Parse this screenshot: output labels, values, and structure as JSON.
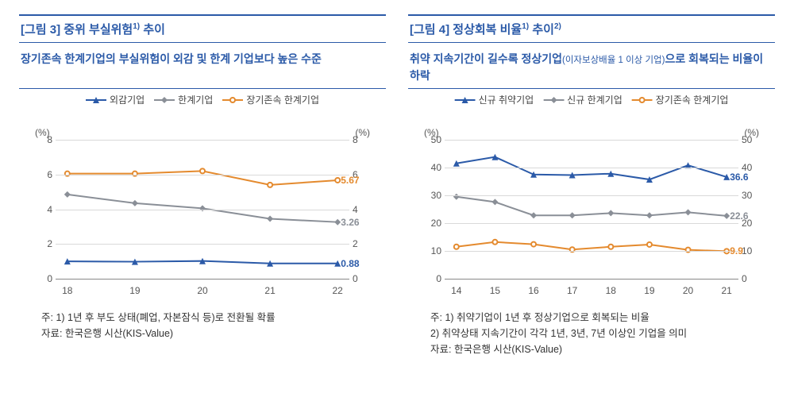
{
  "fig3": {
    "title_prefix": "[그림 3] 중위 부실위험",
    "title_footnote": "1)",
    "title_suffix": " 추이",
    "subtitle": "장기존속 한계기업의 부실위험이 외감 및 한계 기업보다 높은 수준",
    "legend": [
      "외감기업",
      "한계기업",
      "장기존속 한계기업"
    ],
    "unit_left": "(%)",
    "unit_right": "(%)",
    "x": [
      "18",
      "19",
      "20",
      "21",
      "22"
    ],
    "ylim": [
      0,
      8
    ],
    "ytick_step": 2,
    "series": [
      {
        "name": "외감기업",
        "color": "#2b5aa8",
        "marker": "triangle",
        "values": [
          1.0,
          0.98,
          1.02,
          0.88,
          0.88
        ]
      },
      {
        "name": "한계기업",
        "color": "#8a8f97",
        "marker": "diamond",
        "values": [
          4.85,
          4.35,
          4.05,
          3.45,
          3.26
        ]
      },
      {
        "name": "장기존속 한계기업",
        "color": "#e48a2e",
        "marker": "circleOpen",
        "values": [
          6.05,
          6.05,
          6.2,
          5.4,
          5.67
        ]
      }
    ],
    "end_labels": [
      {
        "value": "5.67",
        "color": "#e48a2e",
        "y": 5.67
      },
      {
        "value": "3.26",
        "color": "#8a8f97",
        "y": 3.26
      },
      {
        "value": "0.88",
        "color": "#2b5aa8",
        "y": 0.88
      }
    ],
    "note1": "주: 1) 1년 후 부도 상태(폐업, 자본잠식 등)로 전환될 확률",
    "source": "자료: 한국은행 시산(KIS-Value)"
  },
  "fig4": {
    "title_prefix": "[그림 4] 정상회복 비율",
    "title_footnote": "1)",
    "title_mid": " 추이",
    "title_footnote2": "2)",
    "subtitle_a": "취약 지속기간이 길수록 정상기업",
    "subtitle_small": "(이자보상배율 1 이상 기업)",
    "subtitle_b": "으로 회복되는 비율이 하락",
    "legend": [
      "신규 취약기업",
      "신규 한계기업",
      "장기존속 한계기업"
    ],
    "unit_left": "(%)",
    "unit_right": "(%)",
    "x": [
      "14",
      "15",
      "16",
      "17",
      "18",
      "19",
      "20",
      "21"
    ],
    "ylim": [
      0,
      50
    ],
    "ytick_step": 10,
    "series": [
      {
        "name": "신규 취약기업",
        "color": "#2b5aa8",
        "marker": "triangle",
        "values": [
          41.5,
          43.8,
          37.5,
          37.3,
          37.8,
          35.7,
          40.8,
          36.6
        ]
      },
      {
        "name": "신규 한계기업",
        "color": "#8a8f97",
        "marker": "diamond",
        "values": [
          29.5,
          27.6,
          22.8,
          22.8,
          23.6,
          22.8,
          23.9,
          22.6
        ]
      },
      {
        "name": "장기존속 한계기업",
        "color": "#e48a2e",
        "marker": "circleOpen",
        "values": [
          11.5,
          13.2,
          12.4,
          10.5,
          11.5,
          12.3,
          10.4,
          9.9
        ]
      }
    ],
    "end_labels": [
      {
        "value": "36.6",
        "color": "#2b5aa8",
        "y": 36.6
      },
      {
        "value": "22.6",
        "color": "#8a8f97",
        "y": 22.6
      },
      {
        "value": "9.9",
        "color": "#e48a2e",
        "y": 9.9
      }
    ],
    "note1": "주: 1) 취약기업이 1년 후 정상기업으로 회복되는 비율",
    "note2": "      2) 취약상태 지속기간이 각각 1년, 3년, 7년 이상인 기업을 의미",
    "source": "자료: 한국은행 시산(KIS-Value)"
  },
  "style": {
    "grid_color": "#d9d9d9",
    "axis_color": "#888888",
    "line_width": 2,
    "marker_size": 8
  }
}
